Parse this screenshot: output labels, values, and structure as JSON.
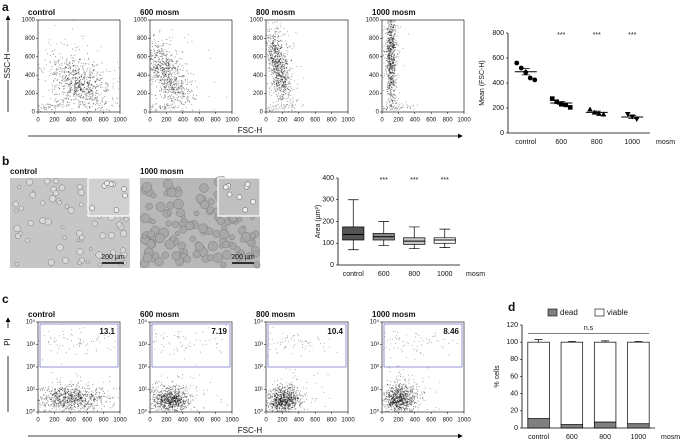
{
  "panel_labels": [
    "a",
    "b",
    "c",
    "d"
  ],
  "images": [
    {
      "title": "control",
      "scale_bar": "200 µm"
    },
    {
      "title": "1000 mosm",
      "scale_bar": "200 µm"
    }
  ],
  "chart_data": [
    {
      "type": "density",
      "title": "control",
      "xlabel": "FSC-H",
      "ylabel": "SSC-H",
      "xlim": [
        0,
        1000
      ],
      "xticks": [
        0,
        200,
        400,
        600,
        800,
        1000
      ],
      "ylim": [
        0,
        1000
      ],
      "yticks": [
        0,
        200,
        400,
        600,
        800,
        1000
      ]
    },
    {
      "type": "density",
      "title": "600 mosm",
      "xlim": [
        0,
        1000
      ],
      "xticks": [
        0,
        200,
        400,
        600,
        800,
        1000
      ],
      "ylim": [
        0,
        1000
      ],
      "yticks": [
        0,
        200,
        400,
        600,
        800,
        1000
      ]
    },
    {
      "type": "density",
      "title": "800 mosm",
      "xlim": [
        0,
        1000
      ],
      "xticks": [
        0,
        200,
        400,
        600,
        800,
        1000
      ],
      "ylim": [
        0,
        1000
      ],
      "yticks": [
        0,
        200,
        400,
        600,
        800,
        1000
      ]
    },
    {
      "type": "density",
      "title": "1000 mosm",
      "xlim": [
        0,
        1000
      ],
      "xticks": [
        0,
        200,
        400,
        600,
        800,
        1000
      ],
      "ylim": [
        0,
        1000
      ],
      "yticks": [
        0,
        200,
        400,
        600,
        800,
        1000
      ]
    },
    {
      "type": "dot",
      "ylabel": "Mean (FSC-H)",
      "xunit": "mosm",
      "categories": [
        "control",
        "600",
        "800",
        "1000"
      ],
      "points": [
        [
          560,
          520,
          485,
          440,
          425
        ],
        [
          275,
          250,
          230,
          225,
          205
        ],
        [
          190,
          165,
          155,
          150
        ],
        [
          150,
          130,
          110
        ]
      ],
      "markers": [
        "circle",
        "square",
        "triangle-up",
        "triangle-down"
      ],
      "means": [
        490,
        240,
        165,
        128
      ],
      "sem": [
        25,
        12,
        10,
        12
      ],
      "annotations": [
        null,
        "***",
        "***",
        "***"
      ],
      "ylim": [
        0,
        800
      ],
      "yticks": [
        0,
        200,
        400,
        600,
        800
      ]
    },
    {
      "type": "box",
      "ylabel": "Area (µm²)",
      "xunit": "mosm",
      "categories": [
        "control",
        "600",
        "800",
        "1000"
      ],
      "boxes": [
        {
          "min": 70,
          "q1": 115,
          "median": 140,
          "q3": 175,
          "max": 300
        },
        {
          "min": 90,
          "q1": 115,
          "median": 130,
          "q3": 145,
          "max": 200
        },
        {
          "min": 75,
          "q1": 95,
          "median": 110,
          "q3": 125,
          "max": 175
        },
        {
          "min": 80,
          "q1": 100,
          "median": 115,
          "q3": 125,
          "max": 165
        }
      ],
      "colors": [
        "#555555",
        "#8c8c8c",
        "#c8c8c8",
        "#ffffff"
      ],
      "annotations": [
        null,
        "***",
        "***",
        "***"
      ],
      "ylim": [
        0,
        400
      ],
      "yticks": [
        0,
        100,
        200,
        300,
        400
      ]
    },
    {
      "type": "density",
      "title": "control",
      "xlabel": "FSC-H",
      "ylabel": "PI",
      "gate_value": 13.1,
      "xlim": [
        0,
        1000
      ],
      "xticks": [
        0,
        200,
        400,
        600,
        800,
        1000
      ],
      "ylog": true,
      "ylim": [
        1,
        10000
      ],
      "yticks": [
        {
          "value": 1,
          "label": "10⁰"
        },
        {
          "value": 10,
          "label": "10¹"
        },
        {
          "value": 100,
          "label": "10²"
        },
        {
          "value": 1000,
          "label": "10³"
        },
        {
          "value": 10000,
          "label": "10⁴"
        }
      ]
    },
    {
      "type": "density",
      "title": "600 mosm",
      "gate_value": 7.19,
      "xlim": [
        0,
        1000
      ],
      "xticks": [
        0,
        200,
        400,
        600,
        800,
        1000
      ],
      "ylog": true,
      "ylim": [
        1,
        10000
      ],
      "yticks": [
        {
          "value": 1,
          "label": "10⁰"
        },
        {
          "value": 10,
          "label": "10¹"
        },
        {
          "value": 100,
          "label": "10²"
        },
        {
          "value": 1000,
          "label": "10³"
        },
        {
          "value": 10000,
          "label": "10⁴"
        }
      ]
    },
    {
      "type": "density",
      "title": "800 mosm",
      "gate_value": 10.4,
      "xlim": [
        0,
        1000
      ],
      "xticks": [
        0,
        200,
        400,
        600,
        800,
        1000
      ],
      "ylog": true,
      "ylim": [
        1,
        10000
      ],
      "yticks": [
        {
          "value": 1,
          "label": "10⁰"
        },
        {
          "value": 10,
          "label": "10¹"
        },
        {
          "value": 100,
          "label": "10²"
        },
        {
          "value": 1000,
          "label": "10³"
        },
        {
          "value": 10000,
          "label": "10⁴"
        }
      ]
    },
    {
      "type": "density",
      "title": "1000 mosm",
      "gate_value": 8.46,
      "xlim": [
        0,
        1000
      ],
      "xticks": [
        0,
        200,
        400,
        600,
        800,
        1000
      ],
      "ylog": true,
      "ylim": [
        1,
        10000
      ],
      "yticks": [
        {
          "value": 1,
          "label": "10⁰"
        },
        {
          "value": 10,
          "label": "10¹"
        },
        {
          "value": 100,
          "label": "10²"
        },
        {
          "value": 1000,
          "label": "10³"
        },
        {
          "value": 10000,
          "label": "10⁴"
        }
      ]
    },
    {
      "type": "stacked_bar",
      "ylabel": "% cells",
      "xunit": "mosm",
      "annotation": "n.s",
      "categories": [
        "control",
        "600",
        "800",
        "1000"
      ],
      "series": [
        {
          "name": "dead",
          "color": "#808080",
          "values": [
            11,
            4,
            7,
            5
          ],
          "errors": [
            4,
            1,
            2,
            1
          ]
        },
        {
          "name": "viable",
          "color": "#ffffff",
          "values": [
            89,
            96,
            93,
            95
          ],
          "errors": [
            3,
            1,
            1.5,
            1
          ]
        }
      ],
      "ylim": [
        0,
        120
      ],
      "yticks": [
        0,
        20,
        40,
        60,
        80,
        100,
        120
      ]
    }
  ]
}
